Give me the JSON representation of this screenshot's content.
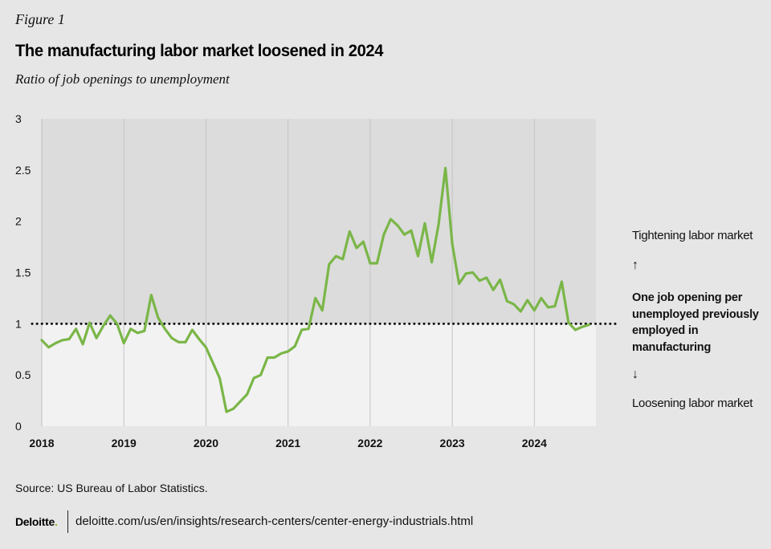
{
  "figure_label": "Figure 1",
  "title": "The manufacturing labor market loosened in 2024",
  "subtitle": "Ratio of job openings to unemployment",
  "annotations": {
    "tightening": "Tightening labor market",
    "up_arrow": "↑",
    "reference": "One job opening per unemployed previously employed in manufacturing",
    "down_arrow": "↓",
    "loosening": "Loosening labor market"
  },
  "source": "Source: US Bureau of Labor Statistics.",
  "brand": {
    "name": "Deloitte",
    "dot": "."
  },
  "url": "deloitte.com/us/en/insights/research-centers/center-energy-industrials.html",
  "colors": {
    "line": "#7ab648",
    "upper_region": "#dcdcdc",
    "lower_region": "#f2f2f2",
    "brand_dot": "#86bc25"
  },
  "chart_data": {
    "type": "line",
    "title": "The manufacturing labor market loosened in 2024",
    "subtitle": "Ratio of job openings to unemployment",
    "xlabel": "",
    "ylabel": "",
    "x_ticks": [
      "2018",
      "2019",
      "2020",
      "2021",
      "2022",
      "2023",
      "2024"
    ],
    "y_ticks": [
      "0",
      "0.5",
      "1",
      "1.5",
      "2",
      "2.5",
      "3"
    ],
    "xlim": [
      "2018-01",
      "2024-09"
    ],
    "ylim": [
      0,
      3
    ],
    "grid": "vertical lines at year boundaries",
    "reference_line": {
      "y": 1,
      "style": "dotted"
    },
    "shaded_regions": [
      {
        "from": 1,
        "to": 3,
        "label": "Tightening labor market"
      },
      {
        "from": 0,
        "to": 1,
        "label": "Loosening labor market"
      }
    ],
    "x": [
      "2018-01",
      "2018-02",
      "2018-03",
      "2018-04",
      "2018-05",
      "2018-06",
      "2018-07",
      "2018-08",
      "2018-09",
      "2018-10",
      "2018-11",
      "2018-12",
      "2019-01",
      "2019-02",
      "2019-03",
      "2019-04",
      "2019-05",
      "2019-06",
      "2019-07",
      "2019-08",
      "2019-09",
      "2019-10",
      "2019-11",
      "2019-12",
      "2020-01",
      "2020-02",
      "2020-03",
      "2020-04",
      "2020-05",
      "2020-06",
      "2020-07",
      "2020-08",
      "2020-09",
      "2020-10",
      "2020-11",
      "2020-12",
      "2021-01",
      "2021-02",
      "2021-03",
      "2021-04",
      "2021-05",
      "2021-06",
      "2021-07",
      "2021-08",
      "2021-09",
      "2021-10",
      "2021-11",
      "2021-12",
      "2022-01",
      "2022-02",
      "2022-03",
      "2022-04",
      "2022-05",
      "2022-06",
      "2022-07",
      "2022-08",
      "2022-09",
      "2022-10",
      "2022-11",
      "2022-12",
      "2023-01",
      "2023-02",
      "2023-03",
      "2023-04",
      "2023-05",
      "2023-06",
      "2023-07",
      "2023-08",
      "2023-09",
      "2023-10",
      "2023-11",
      "2023-12",
      "2024-01",
      "2024-02",
      "2024-03",
      "2024-04",
      "2024-05",
      "2024-06",
      "2024-07",
      "2024-08",
      "2024-09"
    ],
    "series": [
      {
        "values": [
          0.84,
          0.77,
          0.81,
          0.84,
          0.85,
          0.95,
          0.8,
          1.01,
          0.86,
          0.98,
          1.08,
          1.0,
          0.81,
          0.95,
          0.91,
          0.93,
          1.28,
          1.06,
          0.95,
          0.86,
          0.82,
          0.82,
          0.94,
          0.85,
          0.77,
          0.62,
          0.47,
          0.14,
          0.17,
          0.24,
          0.31,
          0.47,
          0.5,
          0.67,
          0.67,
          0.71,
          0.73,
          0.78,
          0.94,
          0.95,
          1.25,
          1.13,
          1.58,
          1.66,
          1.63,
          1.9,
          1.74,
          1.8,
          1.59,
          1.59,
          1.87,
          2.02,
          1.96,
          1.87,
          1.91,
          1.66,
          1.98,
          1.6,
          1.97,
          2.52,
          1.78,
          1.39,
          1.49,
          1.5,
          1.42,
          1.45,
          1.33,
          1.43,
          1.22,
          1.19,
          1.12,
          1.23,
          1.13,
          1.25,
          1.16,
          1.17,
          1.41,
          1.01,
          0.94,
          0.97,
          0.99
        ]
      }
    ]
  }
}
